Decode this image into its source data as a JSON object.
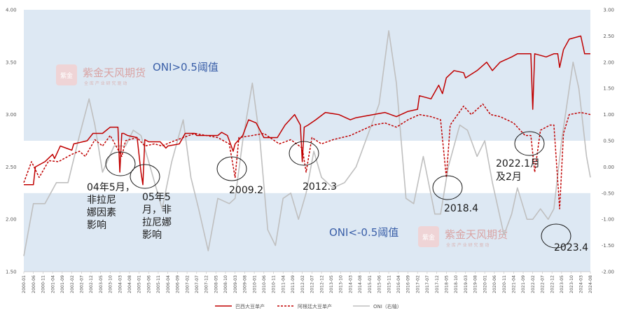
{
  "chart_data": {
    "type": "line",
    "title": "",
    "xlabel": "",
    "ylabel": "",
    "ylim": [
      1.5,
      4.0
    ],
    "y2lim": [
      -2.0,
      3.0
    ],
    "yticks_left": [
      "1.50",
      "2.00",
      "2.50",
      "3.00",
      "3.50",
      "4.00"
    ],
    "yticks_right": [
      "-2.00",
      "-1.50",
      "-1.00",
      "-0.50",
      "0.00",
      "0.50",
      "1.00",
      "1.50",
      "2.00",
      "2.50",
      "3.00"
    ],
    "x_range": [
      "2000-01",
      "2024-08"
    ],
    "x_tick_interval_months": 5,
    "grid": false,
    "legend_position": "bottom",
    "bands": [
      {
        "label": "ONI>0.5阈值",
        "axis": "right",
        "from": 0.5,
        "to": 3.0,
        "color": "#dde8f3"
      },
      {
        "label": "ONI<-0.5阈值",
        "axis": "right",
        "from": -2.0,
        "to": -0.5,
        "color": "#dde8f3"
      }
    ],
    "series": [
      {
        "name": "巴西大豆单产",
        "axis": "left",
        "style": "solid",
        "color": "#c00000",
        "points": [
          [
            "2000-01",
            2.33
          ],
          [
            "2000-06",
            2.33
          ],
          [
            "2000-07",
            2.5
          ],
          [
            "2000-12",
            2.55
          ],
          [
            "2001-04",
            2.62
          ],
          [
            "2001-05",
            2.58
          ],
          [
            "2001-08",
            2.7
          ],
          [
            "2002-02",
            2.66
          ],
          [
            "2002-03",
            2.72
          ],
          [
            "2002-10",
            2.75
          ],
          [
            "2003-01",
            2.82
          ],
          [
            "2003-06",
            2.82
          ],
          [
            "2003-08",
            2.85
          ],
          [
            "2003-10",
            2.88
          ],
          [
            "2004-02",
            2.88
          ],
          [
            "2004-03",
            2.45
          ],
          [
            "2004-04",
            2.82
          ],
          [
            "2004-05",
            2.82
          ],
          [
            "2004-07",
            2.8
          ],
          [
            "2004-12",
            2.78
          ],
          [
            "2005-02",
            2.45
          ],
          [
            "2005-03",
            2.33
          ],
          [
            "2005-04",
            2.76
          ],
          [
            "2005-06",
            2.74
          ],
          [
            "2005-12",
            2.74
          ],
          [
            "2006-03",
            2.68
          ],
          [
            "2006-04",
            2.7
          ],
          [
            "2006-10",
            2.72
          ],
          [
            "2007-01",
            2.82
          ],
          [
            "2007-06",
            2.82
          ],
          [
            "2007-07",
            2.8
          ],
          [
            "2008-06",
            2.8
          ],
          [
            "2008-08",
            2.83
          ],
          [
            "2008-11",
            2.8
          ],
          [
            "2009-01",
            2.7
          ],
          [
            "2009-02",
            2.65
          ],
          [
            "2009-03",
            2.72
          ],
          [
            "2009-07",
            2.8
          ],
          [
            "2009-10",
            2.95
          ],
          [
            "2010-02",
            2.92
          ],
          [
            "2010-06",
            2.78
          ],
          [
            "2011-01",
            2.78
          ],
          [
            "2011-05",
            2.9
          ],
          [
            "2011-10",
            3.0
          ],
          [
            "2012-01",
            2.9
          ],
          [
            "2012-02",
            2.55
          ],
          [
            "2012-03",
            2.88
          ],
          [
            "2012-05",
            2.9
          ],
          [
            "2012-09",
            2.95
          ],
          [
            "2013-02",
            3.02
          ],
          [
            "2013-09",
            3.0
          ],
          [
            "2014-03",
            2.95
          ],
          [
            "2014-06",
            2.97
          ],
          [
            "2015-03",
            3.0
          ],
          [
            "2015-09",
            3.02
          ],
          [
            "2016-03",
            2.98
          ],
          [
            "2016-09",
            3.03
          ],
          [
            "2017-02",
            3.05
          ],
          [
            "2017-03",
            3.18
          ],
          [
            "2017-09",
            3.15
          ],
          [
            "2018-01",
            3.28
          ],
          [
            "2018-03",
            3.2
          ],
          [
            "2018-05",
            3.35
          ],
          [
            "2018-09",
            3.42
          ],
          [
            "2019-02",
            3.4
          ],
          [
            "2019-03",
            3.35
          ],
          [
            "2019-09",
            3.42
          ],
          [
            "2020-02",
            3.5
          ],
          [
            "2020-05",
            3.42
          ],
          [
            "2020-09",
            3.5
          ],
          [
            "2021-03",
            3.55
          ],
          [
            "2021-06",
            3.58
          ],
          [
            "2022-01",
            3.58
          ],
          [
            "2022-02",
            3.05
          ],
          [
            "2022-03",
            3.58
          ],
          [
            "2022-09",
            3.55
          ],
          [
            "2023-01",
            3.58
          ],
          [
            "2023-03",
            3.58
          ],
          [
            "2023-04",
            3.45
          ],
          [
            "2023-06",
            3.62
          ],
          [
            "2023-09",
            3.72
          ],
          [
            "2024-03",
            3.75
          ],
          [
            "2024-05",
            3.58
          ],
          [
            "2024-08",
            3.58
          ]
        ]
      },
      {
        "name": "阿根廷大豆单产",
        "axis": "left",
        "style": "dashed",
        "color": "#c00000",
        "points": [
          [
            "2000-01",
            2.35
          ],
          [
            "2000-05",
            2.55
          ],
          [
            "2000-09",
            2.4
          ],
          [
            "2001-02",
            2.56
          ],
          [
            "2001-07",
            2.55
          ],
          [
            "2002-02",
            2.62
          ],
          [
            "2002-06",
            2.65
          ],
          [
            "2002-09",
            2.6
          ],
          [
            "2003-02",
            2.76
          ],
          [
            "2003-06",
            2.7
          ],
          [
            "2003-10",
            2.8
          ],
          [
            "2004-04",
            2.6
          ],
          [
            "2004-06",
            2.75
          ],
          [
            "2004-12",
            2.78
          ],
          [
            "2005-04",
            2.7
          ],
          [
            "2005-09",
            2.72
          ],
          [
            "2006-01",
            2.7
          ],
          [
            "2006-06",
            2.74
          ],
          [
            "2006-12",
            2.78
          ],
          [
            "2007-06",
            2.82
          ],
          [
            "2007-12",
            2.8
          ],
          [
            "2008-06",
            2.78
          ],
          [
            "2008-12",
            2.72
          ],
          [
            "2009-03",
            2.4
          ],
          [
            "2009-05",
            2.78
          ],
          [
            "2009-12",
            2.8
          ],
          [
            "2010-06",
            2.82
          ],
          [
            "2011-02",
            2.72
          ],
          [
            "2011-08",
            2.76
          ],
          [
            "2012-02",
            2.68
          ],
          [
            "2012-04",
            2.45
          ],
          [
            "2012-07",
            2.78
          ],
          [
            "2012-12",
            2.72
          ],
          [
            "2013-06",
            2.76
          ],
          [
            "2014-03",
            2.8
          ],
          [
            "2014-09",
            2.85
          ],
          [
            "2015-03",
            2.9
          ],
          [
            "2015-09",
            2.92
          ],
          [
            "2016-03",
            2.88
          ],
          [
            "2016-09",
            2.95
          ],
          [
            "2017-03",
            3.0
          ],
          [
            "2017-09",
            2.98
          ],
          [
            "2018-02",
            2.95
          ],
          [
            "2018-05",
            2.4
          ],
          [
            "2018-07",
            2.9
          ],
          [
            "2019-02",
            3.08
          ],
          [
            "2019-06",
            3.0
          ],
          [
            "2019-12",
            3.1
          ],
          [
            "2020-04",
            3.0
          ],
          [
            "2020-09",
            2.98
          ],
          [
            "2021-04",
            2.92
          ],
          [
            "2021-10",
            2.8
          ],
          [
            "2022-01",
            2.8
          ],
          [
            "2022-03",
            2.45
          ],
          [
            "2022-06",
            2.85
          ],
          [
            "2022-11",
            2.9
          ],
          [
            "2023-01",
            2.9
          ],
          [
            "2023-04",
            2.1
          ],
          [
            "2023-06",
            2.82
          ],
          [
            "2023-09",
            3.0
          ],
          [
            "2024-03",
            3.02
          ],
          [
            "2024-08",
            3.0
          ]
        ]
      },
      {
        "name": "ONI（右轴）",
        "axis": "right",
        "style": "solid",
        "color": "#bfbfbf",
        "points": [
          [
            "2000-01",
            -1.7
          ],
          [
            "2000-06",
            -0.7
          ],
          [
            "2000-12",
            -0.7
          ],
          [
            "2001-06",
            -0.3
          ],
          [
            "2001-12",
            -0.3
          ],
          [
            "2002-06",
            0.6
          ],
          [
            "2002-11",
            1.3
          ],
          [
            "2003-02",
            0.8
          ],
          [
            "2003-06",
            -0.1
          ],
          [
            "2003-12",
            0.4
          ],
          [
            "2004-06",
            0.4
          ],
          [
            "2004-10",
            0.7
          ],
          [
            "2005-02",
            0.6
          ],
          [
            "2005-06",
            0.1
          ],
          [
            "2006-01",
            -0.8
          ],
          [
            "2006-06",
            0.1
          ],
          [
            "2006-12",
            0.9
          ],
          [
            "2007-04",
            -0.2
          ],
          [
            "2007-08",
            -0.8
          ],
          [
            "2008-01",
            -1.6
          ],
          [
            "2008-06",
            -0.6
          ],
          [
            "2008-12",
            -0.7
          ],
          [
            "2009-03",
            -0.6
          ],
          [
            "2009-07",
            0.5
          ],
          [
            "2009-12",
            1.6
          ],
          [
            "2010-04",
            0.5
          ],
          [
            "2010-08",
            -1.2
          ],
          [
            "2010-12",
            -1.5
          ],
          [
            "2011-04",
            -0.6
          ],
          [
            "2011-08",
            -0.5
          ],
          [
            "2011-12",
            -1.0
          ],
          [
            "2012-04",
            -0.5
          ],
          [
            "2012-08",
            0.3
          ],
          [
            "2012-12",
            -0.2
          ],
          [
            "2013-06",
            -0.4
          ],
          [
            "2013-12",
            -0.3
          ],
          [
            "2014-06",
            0.0
          ],
          [
            "2014-12",
            0.6
          ],
          [
            "2015-06",
            1.2
          ],
          [
            "2015-11",
            2.6
          ],
          [
            "2016-03",
            1.6
          ],
          [
            "2016-08",
            -0.6
          ],
          [
            "2016-12",
            -0.7
          ],
          [
            "2017-05",
            0.2
          ],
          [
            "2017-11",
            -0.9
          ],
          [
            "2018-02",
            -0.9
          ],
          [
            "2018-06",
            0.0
          ],
          [
            "2018-12",
            0.8
          ],
          [
            "2019-04",
            0.7
          ],
          [
            "2019-09",
            0.2
          ],
          [
            "2020-01",
            0.5
          ],
          [
            "2020-05",
            -0.3
          ],
          [
            "2020-11",
            -1.3
          ],
          [
            "2021-03",
            -0.9
          ],
          [
            "2021-06",
            -0.4
          ],
          [
            "2021-11",
            -1.0
          ],
          [
            "2022-02",
            -1.0
          ],
          [
            "2022-06",
            -0.8
          ],
          [
            "2022-10",
            -1.0
          ],
          [
            "2023-01",
            -0.8
          ],
          [
            "2023-05",
            0.5
          ],
          [
            "2023-11",
            2.0
          ],
          [
            "2024-02",
            1.5
          ],
          [
            "2024-06",
            0.2
          ],
          [
            "2024-08",
            -0.2
          ]
        ]
      }
    ],
    "annotations": [
      {
        "lines": [
          "04年5月，",
          "非拉尼",
          "娜因素",
          "影响"
        ],
        "at": "2004-05",
        "axis": "left",
        "y": 2.6
      },
      {
        "lines": [
          "05年5",
          "月，非",
          "拉尼娜",
          "影响"
        ],
        "at": "2005-04",
        "axis": "left",
        "y": 2.47
      },
      {
        "lines": [
          "2009.2"
        ],
        "at": "2009-02",
        "axis": "left",
        "y": 2.5
      },
      {
        "lines": [
          "2012.3"
        ],
        "at": "2012-03",
        "axis": "left",
        "y": 2.63
      },
      {
        "lines": [
          "2018.4"
        ],
        "at": "2018-04",
        "axis": "left",
        "y": 2.28
      },
      {
        "lines": [
          "2022.1月",
          "及2月"
        ],
        "at": "2022-02",
        "axis": "left",
        "y": 2.72
      },
      {
        "lines": [
          "2023.4"
        ],
        "at": "2023-04",
        "axis": "left",
        "y": 1.85
      }
    ]
  },
  "watermark": {
    "name": "紫金天风期货",
    "tagline": "全 库 产 业   研 究 驱 动",
    "logo_text": "紫金"
  }
}
